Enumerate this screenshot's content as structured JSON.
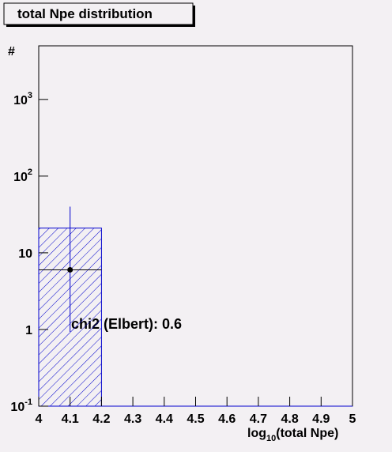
{
  "chart_data": {
    "type": "histogram",
    "title": "total Npe distribution",
    "y_label": "#",
    "x_label": [
      "log",
      "10",
      "(total Npe)"
    ],
    "annotation": "chi2 (Elbert): 0.6",
    "bins": [
      4,
      4.2,
      4.4,
      4.6,
      4.8,
      5
    ],
    "counts": [
      21,
      0,
      0,
      0,
      0
    ],
    "color": "#0000cc",
    "hatched": true,
    "points": {
      "x": [
        4.1
      ],
      "y": [
        6
      ],
      "y_low": [
        0.93
      ],
      "y_high": [
        40
      ],
      "x_low": [
        4
      ],
      "x_high": [
        4.2
      ],
      "color": "#000000"
    },
    "xlim": [
      4,
      5
    ],
    "xticks": [
      4,
      4.1,
      4.2,
      4.3,
      4.4,
      4.5,
      4.6,
      4.7,
      4.8,
      4.9,
      5
    ],
    "ylim": [
      0.1,
      5000
    ],
    "log_y": true,
    "yticks": [
      {
        "value": 0.1,
        "label": "10",
        "exponent": "-1"
      },
      1,
      10,
      {
        "value": 100,
        "label": "10",
        "exponent": "2"
      },
      {
        "value": 1000,
        "label": "10",
        "exponent": "3"
      }
    ]
  }
}
